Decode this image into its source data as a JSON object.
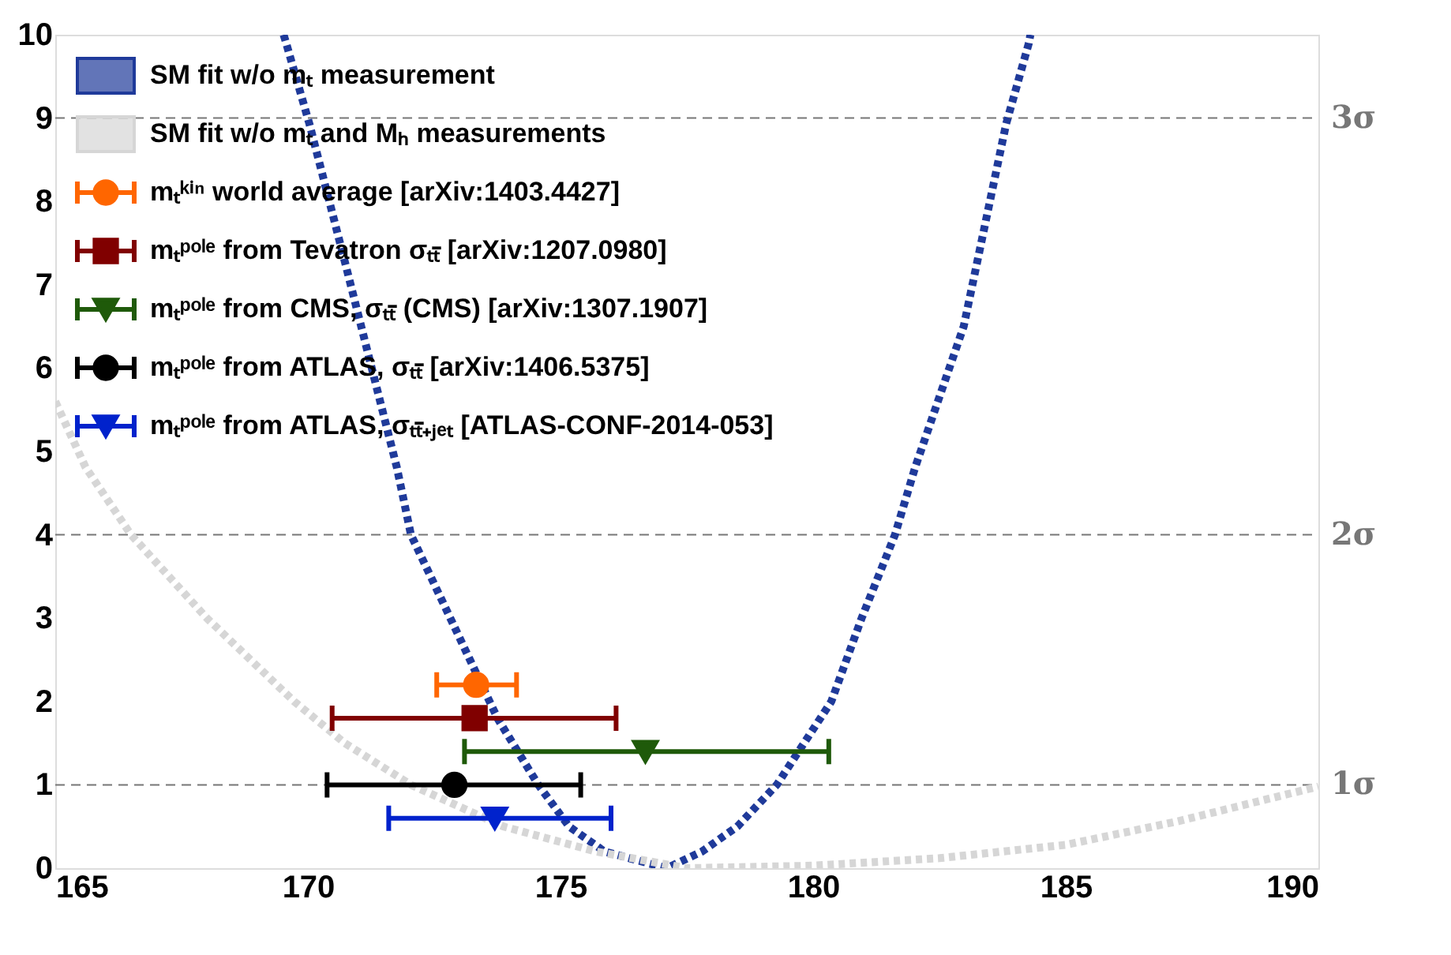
{
  "chart_data": {
    "type": "line",
    "xlim": [
      165,
      190
    ],
    "xticks": [
      165,
      170,
      175,
      180,
      185,
      190
    ],
    "ylim": [
      0,
      10
    ],
    "yticks": [
      0,
      1,
      2,
      3,
      4,
      5,
      6,
      7,
      8,
      9,
      10
    ],
    "grid": false,
    "legend": "top left",
    "series": [
      {
        "name": "SM fit w/o mₜ measurement",
        "color": "#1f3a9a",
        "line_style": "dotted",
        "x": [
          169.52,
          169.57,
          170.03,
          170.73,
          171.76,
          172.04,
          172.85,
          173.76,
          174.56,
          175.17,
          175.87,
          177.1,
          177.8,
          178.5,
          179.28,
          180.36,
          180.96,
          181.62,
          182.02,
          182.98,
          183.82,
          184.27,
          184.3
        ],
        "values": [
          10,
          9.9,
          8.93,
          7.28,
          4.81,
          4.0,
          2.96,
          1.79,
          1.0,
          0.5,
          0.2,
          0,
          0.2,
          0.5,
          1.0,
          2.0,
          3.0,
          4.0,
          4.81,
          6.5,
          8.93,
          9.9,
          10
        ]
      },
      {
        "name": "SM fit w/o mₜ and Mₕ measurements",
        "color": "#d6d6d6",
        "line_style": "dotted",
        "x": [
          165,
          165.6,
          166.5,
          168.0,
          169.73,
          170.73,
          172.04,
          173.87,
          175.7,
          177.5,
          180,
          182.5,
          185,
          187.2,
          190
        ],
        "values": [
          5.6,
          4.81,
          4.0,
          3.0,
          2.0,
          1.5,
          1.0,
          0.5,
          0.2,
          0,
          0.03,
          0.12,
          0.28,
          0.56,
          0.98
        ]
      },
      {
        "name": "mₜᵏⁱⁿ world average [arXiv:1403.4427]",
        "color": "#ff6600",
        "type": "scatter",
        "marker": "circle",
        "x": [
          173.33
        ],
        "values": [
          2.2
        ],
        "xerrors": [
          [
            172.55,
            174.13
          ]
        ]
      },
      {
        "name": "mₜᵖᵒˡᵉ from Tevatron  σₜₜ̄ [arXiv:1207.0980]",
        "color": "#800000",
        "type": "scatter",
        "marker": "square",
        "x": [
          173.3
        ],
        "values": [
          1.8
        ],
        "xerrors": [
          [
            170.48,
            176.1
          ]
        ]
      },
      {
        "name": "mₜᵖᵒˡᵉ from CMS,  σₜₜ̄ (CMS) [arXiv:1307.1907]",
        "color": "#1f5a0a",
        "type": "scatter",
        "marker": "triangle",
        "x": [
          176.68
        ],
        "values": [
          1.4
        ],
        "xerrors": [
          [
            173.1,
            180.31
          ]
        ]
      },
      {
        "name": "mₜᵖᵒˡᵉ from ATLAS,  σₜₜ̄ [arXiv:1406.5375]",
        "color": "#000000",
        "type": "scatter",
        "marker": "circle",
        "x": [
          172.9
        ],
        "values": [
          1.0
        ],
        "xerrors": [
          [
            170.38,
            175.4
          ]
        ]
      },
      {
        "name": "mₜᵖᵒˡᵉ from ATLAS,  σₜₜ̄₊ⱼₑₜ [ATLAS-CONF-2014-053]",
        "color": "#0022cc",
        "type": "scatter",
        "marker": "triangle",
        "x": [
          173.7
        ],
        "values": [
          0.6
        ],
        "xerrors": [
          [
            171.6,
            176.0
          ]
        ]
      }
    ],
    "ref_lines": [
      {
        "axis": "y",
        "value": 1,
        "label": "1σ",
        "color": "#777777",
        "line_style": "dashed"
      },
      {
        "axis": "y",
        "value": 4,
        "label": "2σ",
        "color": "#777777",
        "line_style": "dashed"
      },
      {
        "axis": "y",
        "value": 9,
        "label": "3σ",
        "color": "#777777",
        "line_style": "dashed"
      }
    ]
  }
}
